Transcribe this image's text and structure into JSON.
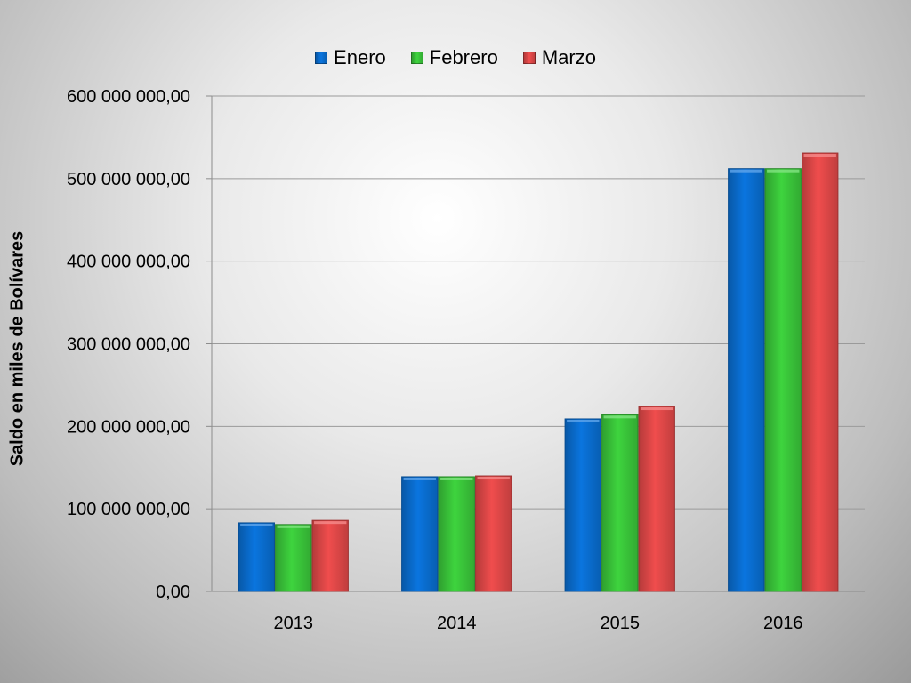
{
  "chart_data": {
    "type": "bar",
    "categories": [
      "2013",
      "2014",
      "2015",
      "2016"
    ],
    "series": [
      {
        "name": "Enero",
        "color": "#0a75df",
        "values": [
          83000000,
          139000000,
          209000000,
          512000000
        ]
      },
      {
        "name": "Febrero",
        "color": "#3ed43e",
        "values": [
          81000000,
          139000000,
          214000000,
          512000000
        ]
      },
      {
        "name": "Marzo",
        "color": "#f04d4d",
        "values": [
          86000000,
          140000000,
          224000000,
          531000000
        ]
      }
    ],
    "title": "",
    "xlabel": "",
    "ylabel": "Saldo en miles de Bolívares",
    "ylim": [
      0,
      600000000
    ],
    "yticks": [
      0,
      100000000,
      200000000,
      300000000,
      400000000,
      500000000,
      600000000
    ],
    "ytick_labels": [
      "0,00",
      "100 000 000,00",
      "200 000 000,00",
      "300 000 000,00",
      "400 000 000,00",
      "500 000 000,00",
      "600 000 000,00"
    ],
    "grid": true,
    "legend_position": "top-center"
  }
}
